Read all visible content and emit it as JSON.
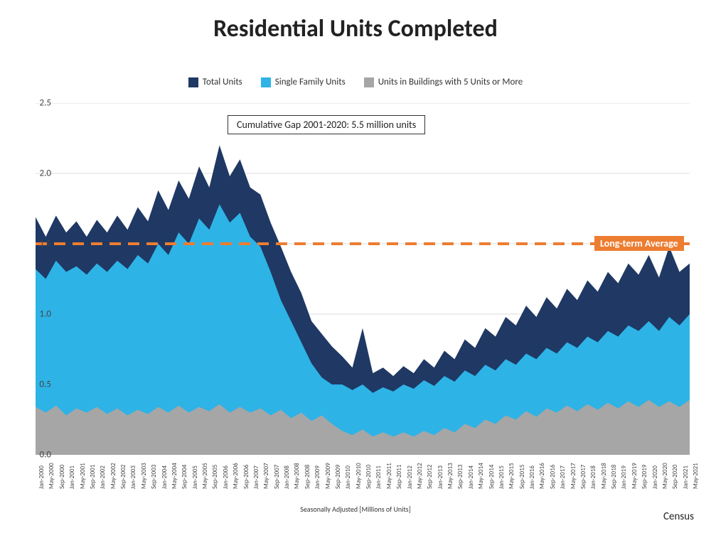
{
  "title": {
    "text": "Residential Units Completed",
    "fontsize": 34,
    "color": "#222222",
    "weight": 700
  },
  "legend": {
    "items": [
      {
        "label": "Total Units",
        "color": "#1f3864"
      },
      {
        "label": "Single Family Units",
        "color": "#2eb3e6"
      },
      {
        "label": "Units in Buildings with 5 Units or More",
        "color": "#a6a6a6"
      }
    ],
    "fontsize": 13
  },
  "annotation": {
    "text": "Cumulative Gap 2001-2020: 5.5 million units",
    "fontsize": 14
  },
  "long_term_avg": {
    "value": 1.5,
    "label": "Long-term Average",
    "line_color": "#ed7d31",
    "box_bg": "#ed7d31",
    "text_color": "#ffffff",
    "line_width": 4,
    "dash": "16 10"
  },
  "footer": {
    "center": "Seasonally Adjusted [Millions of Units]",
    "right": "Census"
  },
  "chart": {
    "type": "area",
    "background_color": "#ffffff",
    "grid_color": "#dcdcdc",
    "axis_color": "#bfbfbf",
    "xlim": [
      0,
      64
    ],
    "ylim": [
      0,
      2.5
    ],
    "ytick_step": 0.5,
    "ytick_labels": [
      "0.0",
      "0.5",
      "1.0",
      "1.5",
      "2.0",
      "2.5"
    ],
    "x_labels": [
      "Jan-2000",
      "May-2000",
      "Sep-2000",
      "Jan-2001",
      "May-2001",
      "Sep-2001",
      "Jan-2002",
      "May-2002",
      "Sep-2002",
      "Jan-2003",
      "May-2003",
      "Sep-2003",
      "Jan-2004",
      "May-2004",
      "Sep-2004",
      "Jan-2005",
      "May-2005",
      "Sep-2005",
      "Jan-2006",
      "May-2006",
      "Sep-2006",
      "Jan-2007",
      "May-2007",
      "Sep-2007",
      "Jan-2008",
      "May-2008",
      "Sep-2008",
      "Jan-2009",
      "May-2009",
      "Sep-2009",
      "Jan-2010",
      "May-2010",
      "Sep-2010",
      "Jan-2011",
      "May-2011",
      "Sep-2011",
      "Jan-2012",
      "May-2012",
      "Sep-2012",
      "Jan-2013",
      "May-2013",
      "Sep-2013",
      "Jan-2014",
      "May-2014",
      "Sep-2014",
      "Jan-2015",
      "May-2015",
      "Sep-2015",
      "Jan-2016",
      "May-2016",
      "Sep-2016",
      "Jan-2017",
      "May-2017",
      "Sep-2017",
      "Jan-2018",
      "May-2018",
      "Sep-2018",
      "Jan-2019",
      "May-2019",
      "Sep-2019",
      "Jan-2020",
      "May-2020",
      "Sep-2020",
      "Jan-2021",
      "May-2021"
    ],
    "series": [
      {
        "name": "Units in Buildings with 5 Units or More",
        "color": "#a6a6a6",
        "values": [
          0.34,
          0.3,
          0.35,
          0.28,
          0.33,
          0.3,
          0.34,
          0.29,
          0.33,
          0.28,
          0.32,
          0.29,
          0.34,
          0.3,
          0.35,
          0.3,
          0.34,
          0.31,
          0.36,
          0.3,
          0.34,
          0.3,
          0.33,
          0.28,
          0.32,
          0.26,
          0.3,
          0.24,
          0.28,
          0.22,
          0.17,
          0.14,
          0.18,
          0.13,
          0.16,
          0.13,
          0.16,
          0.13,
          0.17,
          0.14,
          0.19,
          0.16,
          0.22,
          0.19,
          0.25,
          0.22,
          0.28,
          0.25,
          0.31,
          0.27,
          0.33,
          0.3,
          0.35,
          0.31,
          0.36,
          0.32,
          0.37,
          0.33,
          0.38,
          0.34,
          0.39,
          0.34,
          0.38,
          0.34,
          0.39
        ]
      },
      {
        "name": "Single Family Units",
        "color": "#2eb3e6",
        "values": [
          1.32,
          1.25,
          1.38,
          1.3,
          1.34,
          1.28,
          1.36,
          1.3,
          1.38,
          1.32,
          1.42,
          1.36,
          1.5,
          1.42,
          1.58,
          1.5,
          1.68,
          1.6,
          1.78,
          1.65,
          1.72,
          1.55,
          1.48,
          1.3,
          1.1,
          0.95,
          0.8,
          0.65,
          0.55,
          0.5,
          0.5,
          0.46,
          0.5,
          0.44,
          0.48,
          0.45,
          0.5,
          0.47,
          0.53,
          0.49,
          0.56,
          0.52,
          0.6,
          0.56,
          0.64,
          0.6,
          0.68,
          0.64,
          0.72,
          0.68,
          0.76,
          0.72,
          0.8,
          0.76,
          0.84,
          0.8,
          0.88,
          0.84,
          0.92,
          0.88,
          0.95,
          0.88,
          0.98,
          0.92,
          1.0
        ]
      },
      {
        "name": "Total Units",
        "color": "#1f3864",
        "values": [
          1.69,
          1.55,
          1.7,
          1.58,
          1.66,
          1.55,
          1.67,
          1.58,
          1.7,
          1.6,
          1.76,
          1.66,
          1.88,
          1.74,
          1.95,
          1.82,
          2.05,
          1.9,
          2.2,
          1.98,
          2.1,
          1.9,
          1.85,
          1.65,
          1.48,
          1.3,
          1.15,
          0.95,
          0.86,
          0.77,
          0.7,
          0.62,
          0.9,
          0.58,
          0.62,
          0.56,
          0.63,
          0.58,
          0.68,
          0.62,
          0.74,
          0.68,
          0.82,
          0.76,
          0.9,
          0.84,
          0.98,
          0.92,
          1.06,
          0.98,
          1.12,
          1.04,
          1.18,
          1.1,
          1.24,
          1.16,
          1.3,
          1.22,
          1.36,
          1.28,
          1.42,
          1.26,
          1.48,
          1.3,
          1.36
        ]
      }
    ]
  }
}
